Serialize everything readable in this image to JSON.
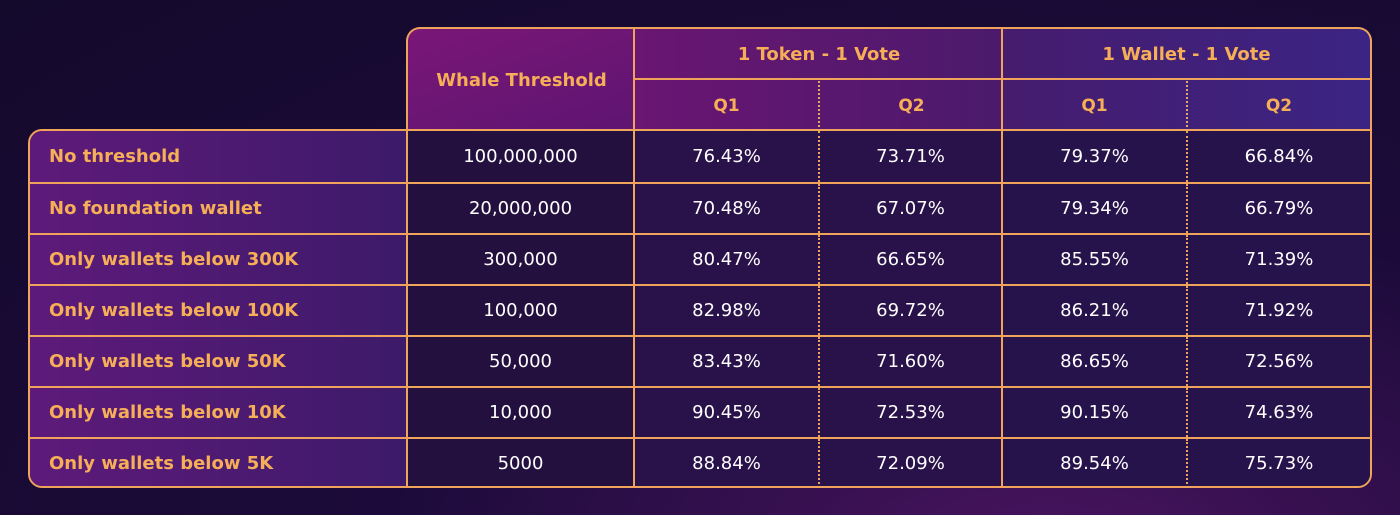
{
  "chart_data": {
    "type": "table",
    "header": {
      "threshold": "Whale Threshold",
      "group1": "1 Token - 1 Vote",
      "group2": "1 Wallet - 1 Vote",
      "q1": "Q1",
      "q2": "Q2"
    },
    "rows": [
      {
        "label": "No threshold",
        "threshold": "100,000,000",
        "t_q1": "76.43%",
        "t_q2": "73.71%",
        "w_q1": "79.37%",
        "w_q2": "66.84%"
      },
      {
        "label": "No foundation wallet",
        "threshold": "20,000,000",
        "t_q1": "70.48%",
        "t_q2": "67.07%",
        "w_q1": "79.34%",
        "w_q2": "66.79%"
      },
      {
        "label": "Only wallets below 300K",
        "threshold": "300,000",
        "t_q1": "80.47%",
        "t_q2": "66.65%",
        "w_q1": "85.55%",
        "w_q2": "71.39%"
      },
      {
        "label": "Only wallets below 100K",
        "threshold": "100,000",
        "t_q1": "82.98%",
        "t_q2": "69.72%",
        "w_q1": "86.21%",
        "w_q2": "71.92%"
      },
      {
        "label": "Only wallets below 50K",
        "threshold": "50,000",
        "t_q1": "83.43%",
        "t_q2": "71.60%",
        "w_q1": "86.65%",
        "w_q2": "72.56%"
      },
      {
        "label": "Only wallets below 10K",
        "threshold": "10,000",
        "t_q1": "90.45%",
        "t_q2": "72.53%",
        "w_q1": "90.15%",
        "w_q2": "74.63%"
      },
      {
        "label": "Only wallets below 5K",
        "threshold": "5000",
        "t_q1": "88.84%",
        "t_q2": "72.09%",
        "w_q1": "89.54%",
        "w_q2": "75.73%"
      }
    ],
    "colors": {
      "accent": "#f6ae57",
      "border": "#f0a35a",
      "background": "#1c0b3a"
    }
  }
}
